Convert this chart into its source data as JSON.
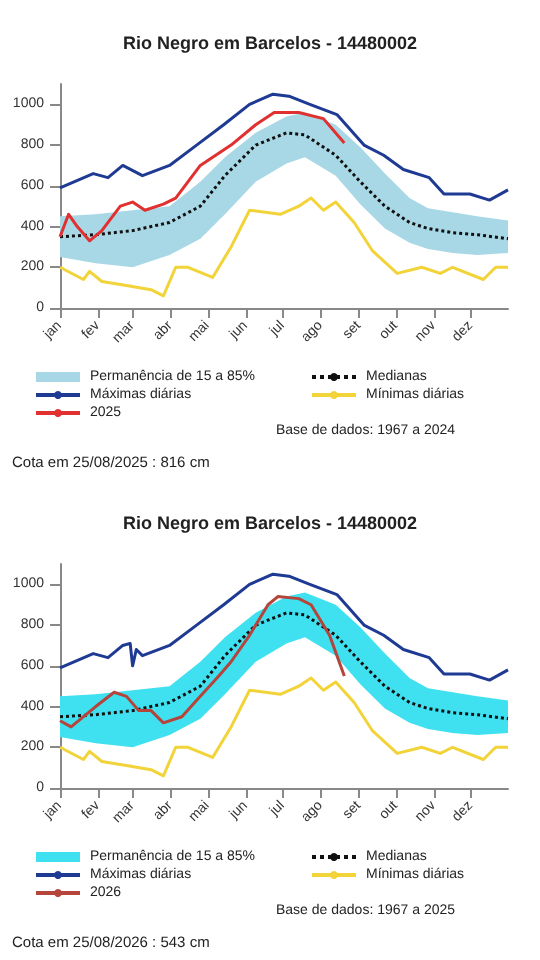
{
  "chart_data": [
    {
      "type": "line",
      "title": "Rio Negro em Barcelos - 14480002",
      "xlim": [
        "--01-01",
        "--12-31"
      ],
      "ylim": [
        0,
        1100
      ],
      "yticks": [
        0,
        200,
        400,
        600,
        800,
        1000
      ],
      "xticks": [
        {
          "value": "--01-01",
          "label": "jan"
        },
        {
          "value": "--02-01",
          "label": "fev"
        },
        {
          "value": "--03-01",
          "label": "mar"
        },
        {
          "value": "--04-01",
          "label": "abr"
        },
        {
          "value": "--05-01",
          "label": "mai"
        },
        {
          "value": "--06-01",
          "label": "jun"
        },
        {
          "value": "--07-01",
          "label": "jul"
        },
        {
          "value": "--08-01",
          "label": "ago"
        },
        {
          "value": "--09-01",
          "label": "set"
        },
        {
          "value": "--10-01",
          "label": "out"
        },
        {
          "value": "--11-01",
          "label": "nov"
        },
        {
          "value": "--12-01",
          "label": "dez"
        }
      ],
      "grid": false,
      "legend": "bottom",
      "marker": "none",
      "annotations": [
        "Base de dados: 1967 a 2024",
        "Cota em 25/08/2025 : 816 cm"
      ],
      "series": [
        {
          "name": "Permanência de 15 a 85%",
          "type": "area",
          "color": "#a8d8e6"
        },
        {
          "name": "Medianas",
          "color": "#111111",
          "line_style": "dotted",
          "x": [
            "--01-01",
            "--01-30",
            "--03-01",
            "--03-31",
            "--04-25",
            "--05-15",
            "--06-09",
            "--07-04",
            "--07-19",
            "--08-13",
            "--09-02",
            "--09-22",
            "--10-12",
            "--10-27",
            "--11-16",
            "--12-06",
            "--12-31"
          ],
          "values": [
            350,
            360,
            380,
            420,
            500,
            650,
            800,
            860,
            850,
            750,
            620,
            500,
            420,
            390,
            370,
            360,
            340
          ],
          "lower": [
            250,
            220,
            200,
            260,
            340,
            460,
            620,
            710,
            740,
            650,
            510,
            390,
            320,
            290,
            270,
            260,
            270
          ],
          "upper": [
            450,
            460,
            480,
            500,
            620,
            740,
            860,
            940,
            960,
            900,
            790,
            660,
            540,
            490,
            470,
            450,
            430
          ]
        },
        {
          "name": "Máximas diárias",
          "color": "#1f3a93",
          "x": [
            "--01-01",
            "--01-28",
            "--02-09",
            "--02-21",
            "--03-09",
            "--03-31",
            "--04-22",
            "--05-14",
            "--06-04",
            "--06-23",
            "--07-06",
            "--07-23",
            "--08-14",
            "--09-05",
            "--09-21",
            "--10-07",
            "--10-28",
            "--11-09",
            "--11-30",
            "--12-16",
            "--12-31"
          ],
          "values": [
            590,
            660,
            640,
            700,
            650,
            700,
            800,
            900,
            1000,
            1050,
            1040,
            1000,
            950,
            800,
            750,
            680,
            640,
            560,
            560,
            530,
            580
          ]
        },
        {
          "name": "Mínimas diárias",
          "color": "#f2d33a",
          "x": [
            "--01-01",
            "--01-20",
            "--01-25",
            "--02-04",
            "--02-24",
            "--03-16",
            "--03-26",
            "--04-05",
            "--04-15",
            "--05-05",
            "--05-20",
            "--06-04",
            "--06-29",
            "--07-14",
            "--07-24",
            "--08-03",
            "--08-13",
            "--08-28",
            "--09-12",
            "--10-02",
            "--10-22",
            "--11-06",
            "--11-16",
            "--12-11",
            "--12-21",
            "--12-31"
          ],
          "values": [
            200,
            140,
            180,
            130,
            110,
            90,
            60,
            200,
            200,
            150,
            300,
            480,
            460,
            500,
            540,
            480,
            520,
            420,
            280,
            170,
            200,
            170,
            200,
            140,
            200,
            200
          ]
        },
        {
          "name": "2025",
          "color": "#e03030",
          "x": [
            "--01-01",
            "--01-08",
            "--01-15",
            "--01-25",
            "--02-04",
            "--02-19",
            "--03-01",
            "--03-11",
            "--03-26",
            "--04-05",
            "--04-25",
            "--05-20",
            "--06-09",
            "--06-24",
            "--07-14",
            "--08-03",
            "--08-20"
          ],
          "values": [
            350,
            460,
            400,
            330,
            380,
            500,
            520,
            480,
            510,
            540,
            700,
            800,
            900,
            960,
            960,
            930,
            810
          ]
        }
      ]
    },
    {
      "type": "line",
      "title": "Rio Negro em Barcelos - 14480002",
      "xlim": [
        "--01-01",
        "--12-31"
      ],
      "ylim": [
        0,
        1100
      ],
      "yticks": [
        0,
        200,
        400,
        600,
        800,
        1000
      ],
      "xticks": [
        {
          "value": "--01-01",
          "label": "jan"
        },
        {
          "value": "--02-01",
          "label": "fev"
        },
        {
          "value": "--03-01",
          "label": "mar"
        },
        {
          "value": "--04-01",
          "label": "abr"
        },
        {
          "value": "--05-01",
          "label": "mai"
        },
        {
          "value": "--06-01",
          "label": "jun"
        },
        {
          "value": "--07-01",
          "label": "jul"
        },
        {
          "value": "--08-01",
          "label": "ago"
        },
        {
          "value": "--09-01",
          "label": "set"
        },
        {
          "value": "--10-01",
          "label": "out"
        },
        {
          "value": "--11-01",
          "label": "nov"
        },
        {
          "value": "--12-01",
          "label": "dez"
        }
      ],
      "grid": false,
      "legend": "bottom",
      "marker": "none",
      "annotations": [
        "Base de dados: 1967 a 2025",
        "Cota em 25/08/2026 : 543 cm"
      ],
      "series": [
        {
          "name": "Permanência de 15 a 85%",
          "type": "area",
          "color": "#3fe0f0"
        },
        {
          "name": "Medianas",
          "color": "#111111",
          "line_style": "dotted",
          "x": [
            "--01-01",
            "--01-30",
            "--03-01",
            "--03-31",
            "--04-25",
            "--05-15",
            "--06-09",
            "--07-04",
            "--07-19",
            "--08-13",
            "--09-02",
            "--09-22",
            "--10-12",
            "--10-27",
            "--11-16",
            "--12-06",
            "--12-31"
          ],
          "values": [
            350,
            360,
            380,
            420,
            500,
            650,
            800,
            860,
            850,
            750,
            620,
            500,
            420,
            390,
            370,
            360,
            340
          ],
          "lower": [
            250,
            220,
            200,
            260,
            340,
            460,
            620,
            710,
            740,
            650,
            510,
            390,
            320,
            290,
            270,
            260,
            270
          ],
          "upper": [
            450,
            460,
            480,
            500,
            620,
            740,
            860,
            940,
            960,
            900,
            790,
            660,
            540,
            490,
            470,
            450,
            430
          ]
        },
        {
          "name": "Máximas diárias",
          "color": "#1f3a93",
          "x": [
            "--01-01",
            "--01-28",
            "--02-09",
            "--02-21",
            "--02-27",
            "--03-01",
            "--03-04",
            "--03-09",
            "--03-31",
            "--04-22",
            "--05-14",
            "--06-04",
            "--06-23",
            "--07-06",
            "--07-23",
            "--08-14",
            "--09-05",
            "--09-21",
            "--10-07",
            "--10-28",
            "--11-09",
            "--11-30",
            "--12-16",
            "--12-31"
          ],
          "values": [
            590,
            660,
            640,
            700,
            710,
            600,
            680,
            650,
            700,
            800,
            900,
            1000,
            1050,
            1040,
            1000,
            950,
            800,
            750,
            680,
            640,
            560,
            560,
            530,
            580
          ]
        },
        {
          "name": "Mínimas diárias",
          "color": "#f2d33a",
          "x": [
            "--01-01",
            "--01-20",
            "--01-25",
            "--02-04",
            "--02-24",
            "--03-16",
            "--03-26",
            "--04-05",
            "--04-15",
            "--05-05",
            "--05-20",
            "--06-04",
            "--06-29",
            "--07-14",
            "--07-24",
            "--08-03",
            "--08-13",
            "--08-28",
            "--09-12",
            "--10-02",
            "--10-22",
            "--11-06",
            "--11-16",
            "--12-11",
            "--12-21",
            "--12-31"
          ],
          "values": [
            200,
            140,
            180,
            130,
            110,
            90,
            60,
            200,
            200,
            150,
            300,
            480,
            460,
            500,
            540,
            480,
            520,
            420,
            280,
            170,
            200,
            170,
            200,
            140,
            200,
            200
          ]
        },
        {
          "name": "2026",
          "color": "#b5443a",
          "x": [
            "--01-01",
            "--01-10",
            "--01-30",
            "--02-14",
            "--02-24",
            "--03-06",
            "--03-16",
            "--03-26",
            "--04-10",
            "--04-25",
            "--05-10",
            "--05-20",
            "--06-04",
            "--06-19",
            "--06-27",
            "--07-14",
            "--07-24",
            "--08-08",
            "--08-20"
          ],
          "values": [
            330,
            300,
            400,
            470,
            450,
            380,
            380,
            320,
            350,
            450,
            550,
            620,
            750,
            900,
            940,
            930,
            900,
            750,
            550
          ]
        }
      ]
    }
  ]
}
